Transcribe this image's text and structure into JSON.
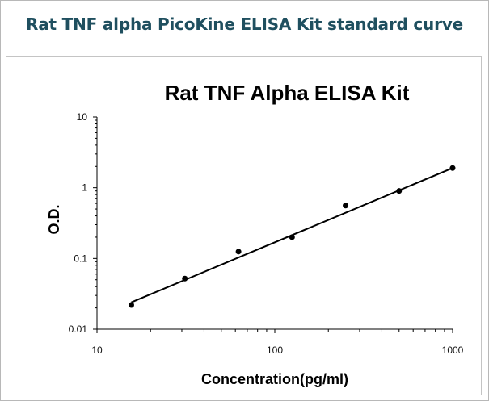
{
  "header": {
    "title": "Rat TNF alpha PicoKine ELISA Kit standard curve"
  },
  "chart_data": {
    "type": "scatter",
    "title": "Rat TNF Alpha ELISA Kit",
    "xlabel": "Concentration(pg/ml)",
    "ylabel": "O.D.",
    "x_scale": "log",
    "y_scale": "log",
    "xlim": [
      10,
      1000
    ],
    "ylim": [
      0.01,
      10
    ],
    "x_ticks": [
      "10",
      "100",
      "1000"
    ],
    "y_ticks": [
      "10",
      "1",
      "0.1",
      "0.01"
    ],
    "grid": false,
    "series": [
      {
        "points": [
          {
            "x": 15.6,
            "y": 0.022
          },
          {
            "x": 31.2,
            "y": 0.052
          },
          {
            "x": 62.5,
            "y": 0.125
          },
          {
            "x": 125,
            "y": 0.2
          },
          {
            "x": 250,
            "y": 0.56
          },
          {
            "x": 500,
            "y": 0.9
          },
          {
            "x": 1000,
            "y": 1.9
          }
        ]
      }
    ],
    "trendline": {
      "x": [
        15.6,
        1000
      ],
      "y": [
        0.024,
        1.9
      ]
    }
  },
  "colors": {
    "header_text": "#1f4f5f",
    "markers": "#000000",
    "frame": "#b8b8b8"
  }
}
